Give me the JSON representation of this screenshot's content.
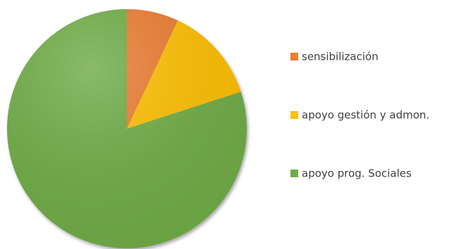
{
  "chart_data": {
    "type": "pie",
    "title": "",
    "categories": [
      "sensibilización",
      "apoyo gestión y admon.",
      "apoyo prog. Sociales"
    ],
    "values": [
      7,
      13,
      80
    ],
    "colors": [
      "#ED7D31",
      "#FFC000",
      "#70AD47"
    ],
    "legend_position": "right",
    "start_angle_deg": 0,
    "direction": "clockwise"
  }
}
